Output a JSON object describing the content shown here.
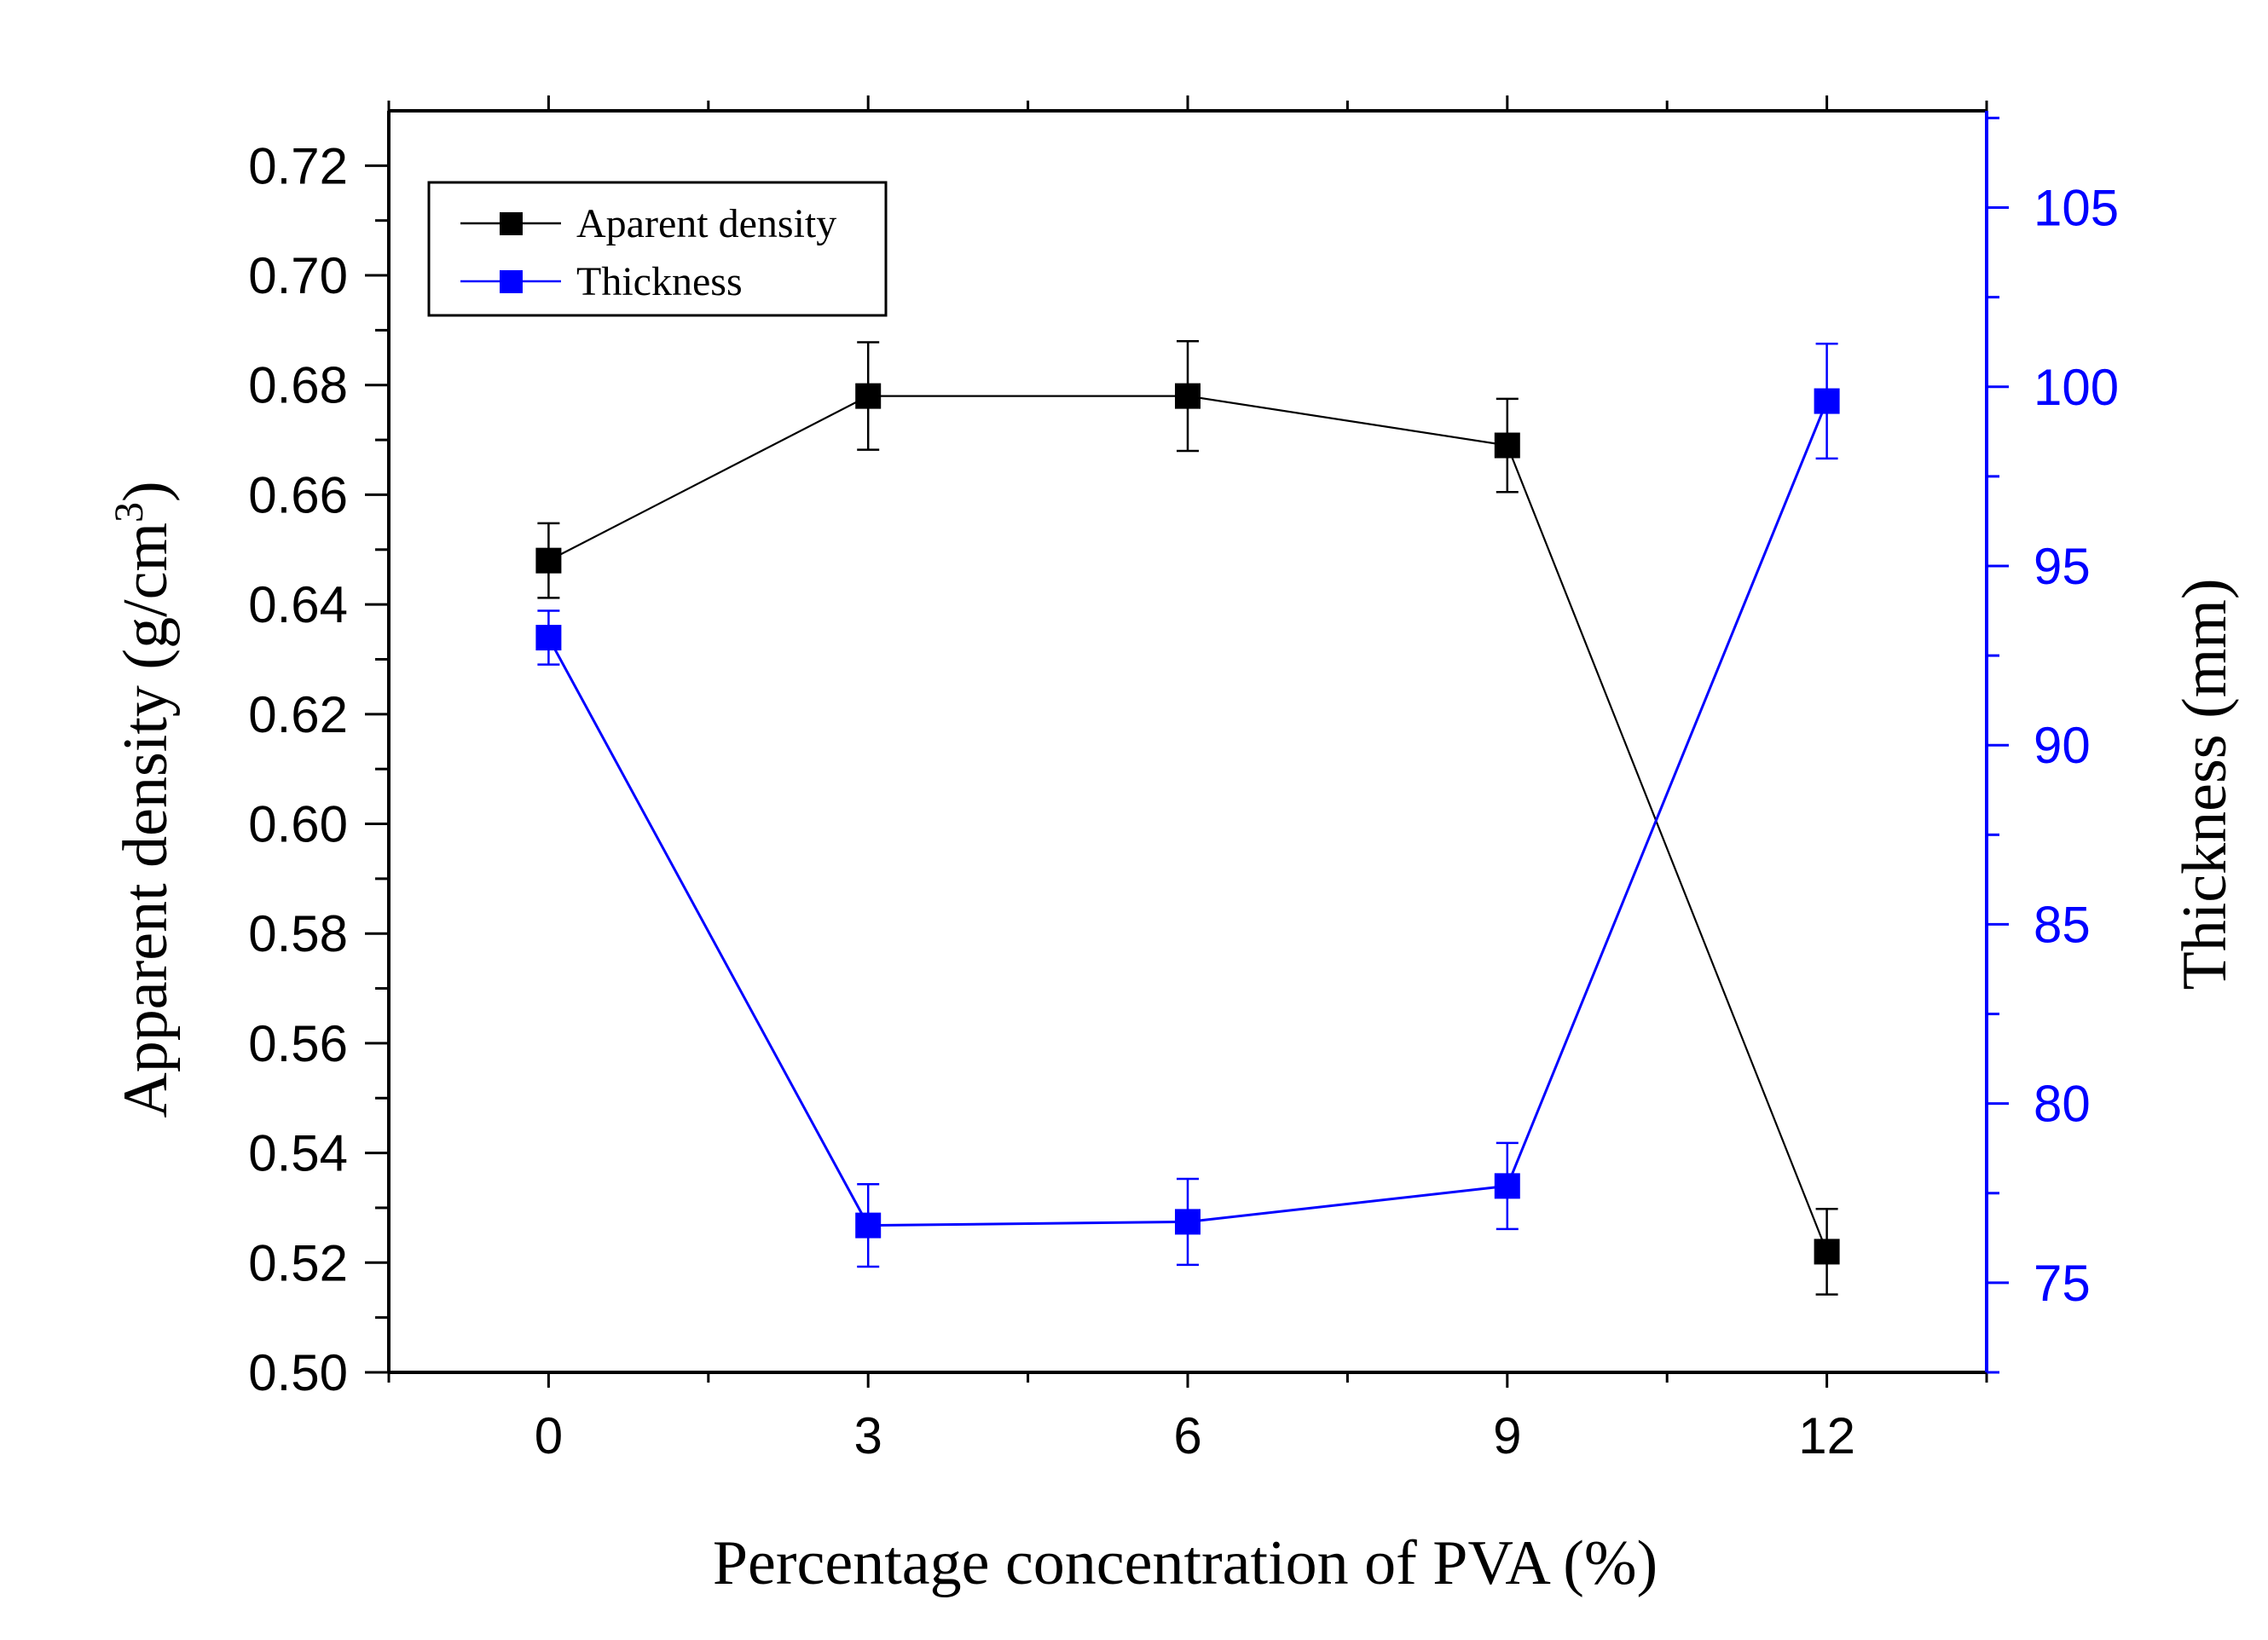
{
  "chart_data": {
    "type": "line",
    "title": "",
    "xlabel": "Percentage concentration of PVA (%)",
    "ylabel_left": "Apparent density (g/cm",
    "ylabel_left_sup": "3",
    "ylabel_left_close": ")",
    "ylabel_right": "Thickness (mm)",
    "xlim": [
      -1.5,
      13.5
    ],
    "xticks": [
      0,
      3,
      6,
      9,
      12
    ],
    "ylim_left": [
      0.5,
      0.73
    ],
    "yticks_left": [
      0.5,
      0.52,
      0.54,
      0.56,
      0.58,
      0.6,
      0.62,
      0.64,
      0.66,
      0.68,
      0.7,
      0.72
    ],
    "ytick_labels_left": [
      "0.50",
      "0.52",
      "0.54",
      "0.56",
      "0.58",
      "0.60",
      "0.62",
      "0.64",
      "0.66",
      "0.68",
      "0.70",
      "0.72"
    ],
    "ylim_right": [
      72.5,
      107.7
    ],
    "yticks_right": [
      75,
      80,
      85,
      90,
      95,
      100,
      105
    ],
    "legend_position": "top-left",
    "series": [
      {
        "name": "Aparent density",
        "axis": "left",
        "color": "#000000",
        "x": [
          0,
          3,
          6,
          9,
          12
        ],
        "values": [
          0.648,
          0.678,
          0.678,
          0.669,
          0.522
        ],
        "errors": [
          0.0068,
          0.0098,
          0.01,
          0.0085,
          0.0078
        ]
      },
      {
        "name": "Thickness",
        "axis": "right",
        "color": "#0000ff",
        "x": [
          0,
          3,
          6,
          9,
          12
        ],
        "values": [
          93.0,
          76.6,
          76.7,
          77.7,
          99.6
        ],
        "errors": [
          0.75,
          1.15,
          1.2,
          1.2,
          1.6
        ]
      }
    ]
  }
}
